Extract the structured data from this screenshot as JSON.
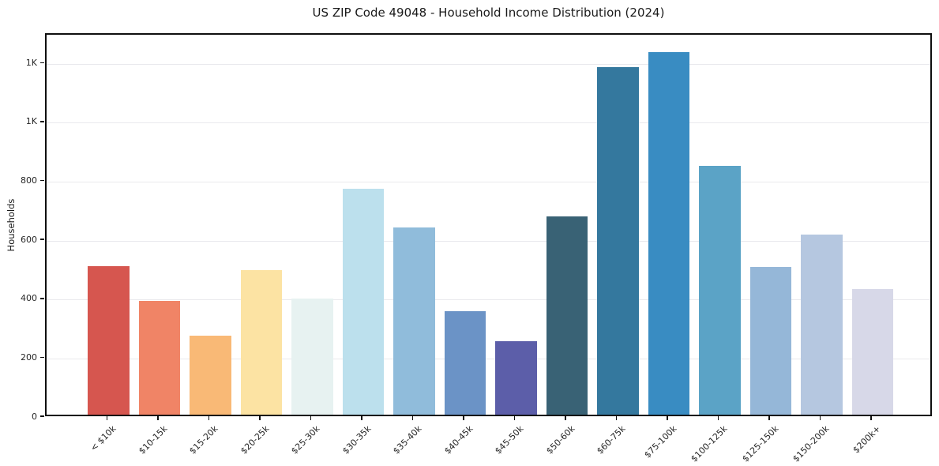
{
  "chart_data": {
    "type": "bar",
    "title": "US ZIP Code 49048 - Household Income Distribution (2024)",
    "xlabel": "",
    "ylabel": "Households",
    "categories": [
      "< $10k",
      "$10-15k",
      "$15-20k",
      "$20-25k",
      "$25-30k",
      "$30-35k",
      "$35-40k",
      "$40-45k",
      "$45-50k",
      "$50-60k",
      "$60-75k",
      "$75-100k",
      "$100-125k",
      "$125-150k",
      "$150-200k",
      "$200k+"
    ],
    "values": [
      505,
      387,
      268,
      490,
      395,
      766,
      636,
      352,
      248,
      672,
      1179,
      1231,
      845,
      500,
      612,
      427
    ],
    "bar_colors": [
      "#d6564f",
      "#f08466",
      "#f9b976",
      "#fce3a3",
      "#e7f2f1",
      "#bce0ed",
      "#90bcdb",
      "#6b93c6",
      "#5c5ea9",
      "#396275",
      "#34789e",
      "#398cc2",
      "#5ba3c6",
      "#95b7d8",
      "#b5c7e0",
      "#d7d8e8"
    ],
    "ylim": [
      0,
      1300
    ],
    "yticks": [
      {
        "value": 0,
        "label": "0"
      },
      {
        "value": 200,
        "label": "200"
      },
      {
        "value": 400,
        "label": "400"
      },
      {
        "value": 600,
        "label": "600"
      },
      {
        "value": 800,
        "label": "800"
      },
      {
        "value": 1000,
        "label": "1K"
      },
      {
        "value": 1200,
        "label": "1K"
      }
    ],
    "grid": "horizontal",
    "grid_color": "#e9e9ed",
    "background": "#ffffff",
    "spine_color": "#0f0f0f",
    "legend": "none"
  }
}
